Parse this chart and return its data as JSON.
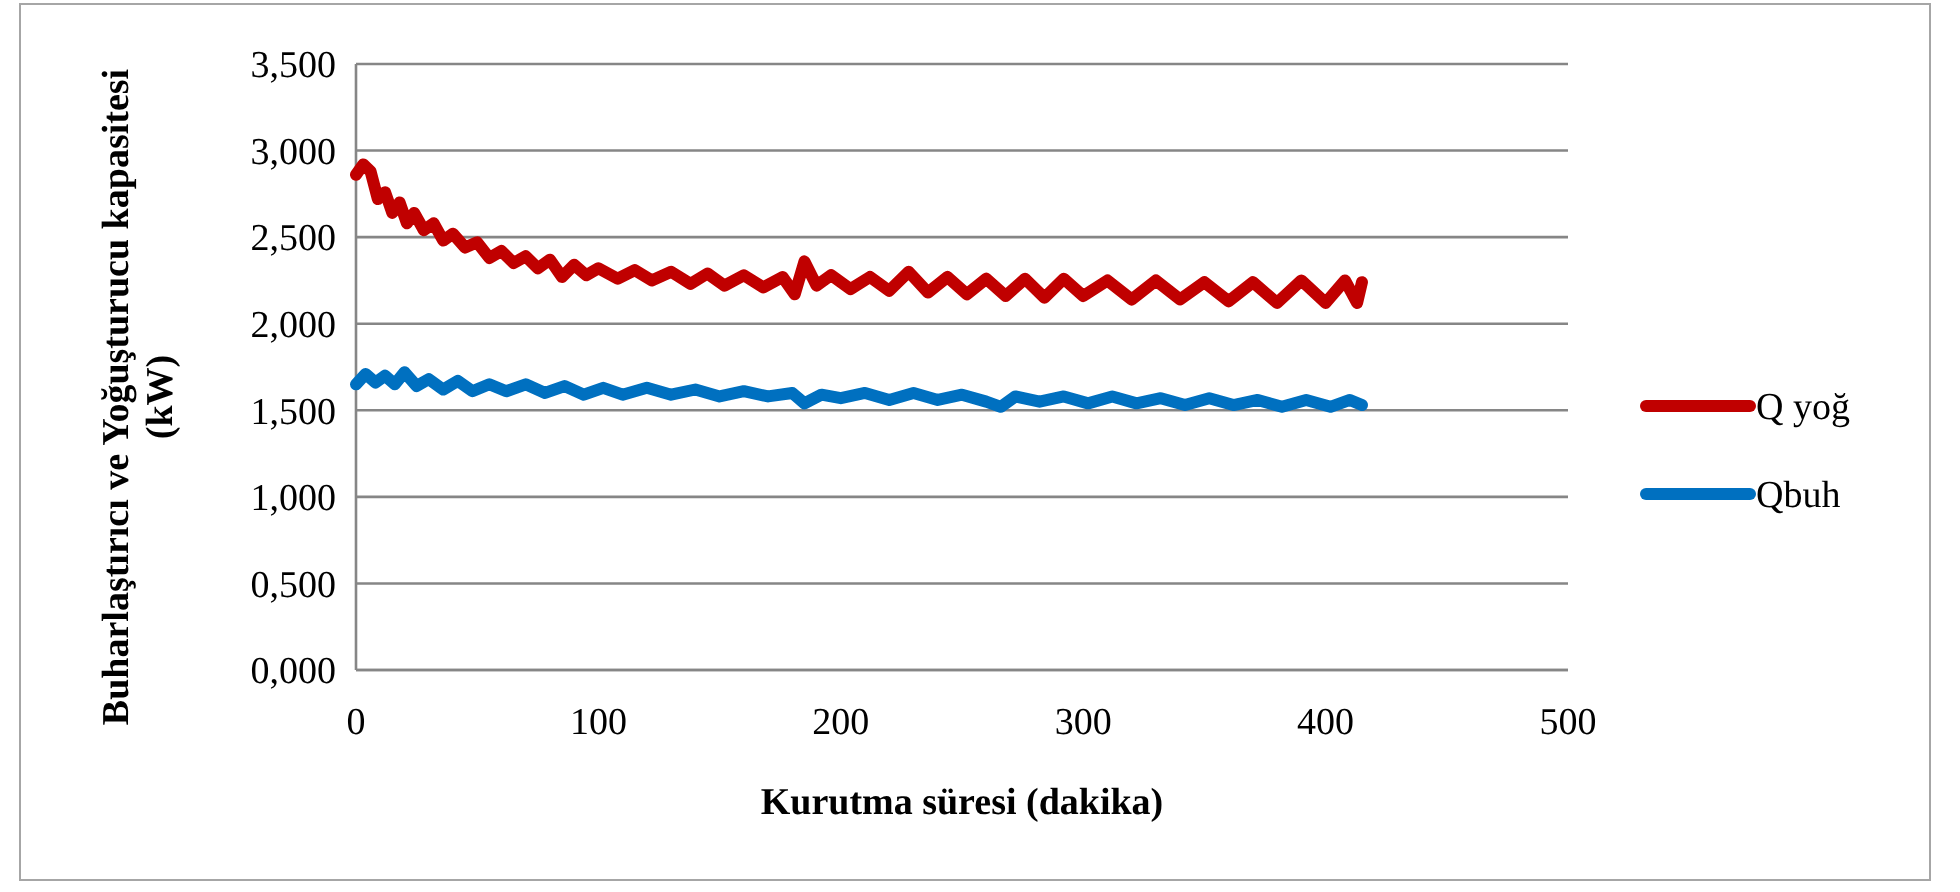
{
  "chart_data": {
    "type": "line",
    "xlabel": "Kurutma süresi (dakika)",
    "ylabel": "Buharlaştırıcı  ve Yoğuşturucu kapasitesi (kW)",
    "xlim": [
      0,
      500
    ],
    "xticks": [
      0,
      100,
      200,
      300,
      400,
      500
    ],
    "ylim": [
      0,
      3.5
    ],
    "yticks": [
      {
        "value": 0,
        "label": "0,000"
      },
      {
        "value": 0.5,
        "label": "0,500"
      },
      {
        "value": 1,
        "label": "1,000"
      },
      {
        "value": 1.5,
        "label": "1,500"
      },
      {
        "value": 2,
        "label": "2,000"
      },
      {
        "value": 2.5,
        "label": "2,500"
      },
      {
        "value": 3,
        "label": "3,000"
      },
      {
        "value": 3.5,
        "label": "3,500"
      }
    ],
    "grid": "y",
    "legend": "right",
    "marker": "none",
    "line_style": "solid",
    "series": [
      {
        "name": "Q yoğ",
        "color": "#c00000",
        "x": [
          0,
          3,
          6,
          9,
          12,
          15,
          18,
          21,
          24,
          28,
          32,
          36,
          40,
          45,
          50,
          55,
          60,
          65,
          70,
          75,
          80,
          85,
          90,
          95,
          100,
          108,
          115,
          122,
          130,
          138,
          145,
          152,
          160,
          168,
          176,
          181,
          185,
          190,
          196,
          204,
          212,
          220,
          228,
          236,
          244,
          252,
          260,
          268,
          276,
          284,
          292,
          300,
          310,
          320,
          330,
          340,
          350,
          360,
          370,
          380,
          390,
          400,
          408,
          413,
          415
        ],
        "values": [
          2.86,
          2.92,
          2.88,
          2.72,
          2.76,
          2.64,
          2.7,
          2.58,
          2.64,
          2.54,
          2.58,
          2.48,
          2.52,
          2.44,
          2.47,
          2.38,
          2.42,
          2.35,
          2.39,
          2.32,
          2.37,
          2.27,
          2.34,
          2.28,
          2.32,
          2.26,
          2.31,
          2.25,
          2.3,
          2.23,
          2.29,
          2.22,
          2.28,
          2.21,
          2.27,
          2.17,
          2.36,
          2.22,
          2.28,
          2.2,
          2.27,
          2.19,
          2.3,
          2.18,
          2.27,
          2.17,
          2.26,
          2.16,
          2.26,
          2.15,
          2.26,
          2.16,
          2.25,
          2.14,
          2.25,
          2.14,
          2.24,
          2.13,
          2.24,
          2.12,
          2.25,
          2.12,
          2.25,
          2.12,
          2.24
        ]
      },
      {
        "name": "Qbuh",
        "color": "#0070c0",
        "x": [
          0,
          4,
          8,
          12,
          16,
          20,
          25,
          30,
          36,
          42,
          48,
          55,
          62,
          70,
          78,
          86,
          94,
          102,
          110,
          120,
          130,
          140,
          150,
          160,
          170,
          180,
          185,
          192,
          200,
          210,
          220,
          230,
          240,
          250,
          260,
          266,
          272,
          282,
          292,
          302,
          312,
          322,
          332,
          342,
          352,
          362,
          372,
          382,
          392,
          402,
          410,
          415
        ],
        "values": [
          1.65,
          1.71,
          1.66,
          1.7,
          1.65,
          1.72,
          1.64,
          1.68,
          1.62,
          1.67,
          1.61,
          1.65,
          1.61,
          1.65,
          1.6,
          1.64,
          1.59,
          1.63,
          1.59,
          1.63,
          1.59,
          1.62,
          1.58,
          1.61,
          1.58,
          1.6,
          1.54,
          1.59,
          1.57,
          1.6,
          1.56,
          1.6,
          1.56,
          1.59,
          1.55,
          1.52,
          1.58,
          1.55,
          1.58,
          1.54,
          1.58,
          1.54,
          1.57,
          1.53,
          1.57,
          1.53,
          1.56,
          1.52,
          1.56,
          1.52,
          1.56,
          1.53
        ]
      }
    ]
  }
}
